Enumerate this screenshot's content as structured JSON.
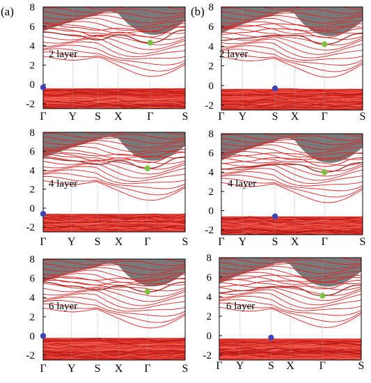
{
  "figure": {
    "panel_labels": [
      "(a)",
      "(b)"
    ]
  },
  "colors": {
    "band": "#e21f1f",
    "band_dark": "#a3302a",
    "shade": "#7a7878",
    "vbm_dot": "#3e43b8",
    "cbm_dot": "#7fc043",
    "kline": "#9a9a9a"
  },
  "chart_data": [
    {
      "type": "line",
      "panel": "(a)",
      "label": "2 layer",
      "ylim": [
        -2.5,
        8
      ],
      "yticks": [
        "-2",
        "0",
        "2",
        "4",
        "6",
        "8"
      ],
      "kpoints": [
        "Γ",
        "Y",
        "S",
        "X",
        "Γ",
        "S"
      ],
      "kpos": [
        0,
        0.208,
        0.385,
        0.529,
        0.754,
        1
      ],
      "vbm": {
        "k": "Γ",
        "energy": -0.3
      },
      "cbm": {
        "k": "Γ",
        "energy": 4.3
      },
      "cbm_curve": [
        [
          0,
          5.4
        ],
        [
          0.208,
          5.1
        ],
        [
          0.385,
          4.6
        ],
        [
          0.529,
          5.1
        ],
        [
          0.754,
          4.3
        ],
        [
          1,
          5.6
        ]
      ],
      "sub_curves": [
        [
          [
            0,
            5.8
          ],
          [
            0.208,
            5.5
          ],
          [
            0.385,
            5.0
          ],
          [
            0.529,
            5.4
          ],
          [
            0.754,
            4.9
          ],
          [
            1,
            6.0
          ]
        ],
        [
          [
            0,
            6.3
          ],
          [
            0.208,
            5.9
          ],
          [
            0.385,
            5.6
          ],
          [
            0.529,
            5.8
          ],
          [
            0.754,
            5.5
          ],
          [
            1,
            6.3
          ]
        ]
      ],
      "vb_top": -0.4,
      "shade_low": 5.2
    },
    {
      "type": "line",
      "panel": "(b)",
      "label": "2 layer",
      "ylim": [
        -2.5,
        8
      ],
      "yticks": [
        "-2",
        "0",
        "2",
        "4",
        "6",
        "8"
      ],
      "kpoints": [
        "Γ",
        "Y",
        "S",
        "X",
        "Γ",
        "S"
      ],
      "kpos": [
        0,
        0.15,
        0.38,
        0.52,
        0.73,
        1
      ],
      "vbm": {
        "k": "S",
        "energy": -0.3
      },
      "cbm": {
        "k": "Γ",
        "energy": 4.2
      },
      "cbm_curve": [
        [
          0,
          4.6
        ],
        [
          0.15,
          4.8
        ],
        [
          0.38,
          5.1
        ],
        [
          0.52,
          5.1
        ],
        [
          0.73,
          4.2
        ],
        [
          1,
          5.3
        ]
      ],
      "sub_curves": [
        [
          [
            0,
            5.2
          ],
          [
            0.15,
            5.4
          ],
          [
            0.38,
            5.8
          ],
          [
            0.52,
            5.7
          ],
          [
            0.73,
            4.9
          ],
          [
            1,
            5.8
          ]
        ],
        [
          [
            0,
            5.8
          ],
          [
            0.15,
            6.0
          ],
          [
            0.38,
            6.3
          ],
          [
            0.52,
            6.2
          ],
          [
            0.73,
            5.6
          ],
          [
            1,
            6.3
          ]
        ]
      ],
      "vb_top": -0.35,
      "shade_low": 5.0
    },
    {
      "type": "line",
      "panel": "(a)",
      "label": "4 layer",
      "ylim": [
        -2.5,
        8
      ],
      "yticks": [
        "-2",
        "0",
        "2",
        "4",
        "6",
        "8"
      ],
      "kpoints": [
        "Γ",
        "Y",
        "S",
        "X",
        "Γ",
        "S"
      ],
      "kpos": [
        0,
        0.2,
        0.383,
        0.532,
        0.735,
        1
      ],
      "vbm": {
        "k": "Γ",
        "energy": -0.6
      },
      "cbm": {
        "k": "Γ",
        "energy": 4.2
      },
      "cbm_curve": [
        [
          0,
          5.3
        ],
        [
          0.2,
          5.0
        ],
        [
          0.383,
          4.6
        ],
        [
          0.532,
          5.0
        ],
        [
          0.735,
          4.2
        ],
        [
          1,
          5.4
        ]
      ],
      "sub_curves": [
        [
          [
            0,
            5.7
          ],
          [
            0.2,
            5.4
          ],
          [
            0.383,
            5.0
          ],
          [
            0.532,
            5.3
          ],
          [
            0.735,
            4.8
          ],
          [
            1,
            5.9
          ]
        ],
        [
          [
            0,
            6.2
          ],
          [
            0.2,
            5.8
          ],
          [
            0.383,
            5.5
          ],
          [
            0.532,
            5.7
          ],
          [
            0.735,
            5.4
          ],
          [
            1,
            6.2
          ]
        ]
      ],
      "vb_top": -0.6,
      "shade_low": 5.0
    },
    {
      "type": "line",
      "panel": "(b)",
      "label": "4 layer",
      "ylim": [
        -2.5,
        8
      ],
      "yticks": [
        "-2",
        "0",
        "2",
        "4",
        "6",
        "8"
      ],
      "kpoints": [
        "Γ",
        "Y",
        "S",
        "X",
        "Γ",
        "S"
      ],
      "kpos": [
        0,
        0.15,
        0.38,
        0.52,
        0.73,
        1
      ],
      "vbm": {
        "k": "S",
        "energy": -0.6
      },
      "cbm": {
        "k": "Γ",
        "energy": 4.0
      },
      "cbm_curve": [
        [
          0,
          4.3
        ],
        [
          0.15,
          4.5
        ],
        [
          0.38,
          4.8
        ],
        [
          0.52,
          4.8
        ],
        [
          0.73,
          4.0
        ],
        [
          1,
          5.0
        ]
      ],
      "sub_curves": [
        [
          [
            0,
            4.9
          ],
          [
            0.15,
            5.1
          ],
          [
            0.38,
            5.5
          ],
          [
            0.52,
            5.4
          ],
          [
            0.73,
            4.6
          ],
          [
            1,
            5.5
          ]
        ],
        [
          [
            0,
            5.5
          ],
          [
            0.15,
            5.7
          ],
          [
            0.38,
            6.0
          ],
          [
            0.52,
            5.9
          ],
          [
            0.73,
            5.3
          ],
          [
            1,
            6.0
          ]
        ]
      ],
      "vb_top": -0.6,
      "shade_low": 4.9
    },
    {
      "type": "line",
      "panel": "(a)",
      "label": "6 layer",
      "ylim": [
        -2.5,
        8
      ],
      "yticks": [
        "-2",
        "0",
        "2",
        "4",
        "6",
        "8"
      ],
      "kpoints": [
        "Γ",
        "Y",
        "S",
        "X",
        "Γ",
        "S"
      ],
      "kpos": [
        0,
        0.2,
        0.383,
        0.532,
        0.735,
        1
      ],
      "vbm": {
        "k": "Γ",
        "energy": 0.0
      },
      "cbm": {
        "k": "Γ",
        "energy": 4.6
      },
      "cbm_curve": [
        [
          0,
          5.6
        ],
        [
          0.2,
          5.2
        ],
        [
          0.383,
          4.8
        ],
        [
          0.532,
          5.2
        ],
        [
          0.735,
          4.6
        ],
        [
          1,
          5.6
        ]
      ],
      "sub_curves": [
        [
          [
            0,
            6.0
          ],
          [
            0.2,
            5.6
          ],
          [
            0.383,
            5.3
          ],
          [
            0.532,
            5.6
          ],
          [
            0.735,
            5.2
          ],
          [
            1,
            6.0
          ]
        ],
        [
          [
            0,
            6.4
          ],
          [
            0.2,
            6.0
          ],
          [
            0.383,
            5.8
          ],
          [
            0.532,
            6.0
          ],
          [
            0.735,
            5.7
          ],
          [
            1,
            6.4
          ]
        ]
      ],
      "vb_top": -0.2,
      "shade_low": 5.3
    },
    {
      "type": "line",
      "panel": "(b)",
      "label": "6 layer",
      "ylim": [
        -2.5,
        8
      ],
      "yticks": [
        "-2",
        "0",
        "2",
        "4",
        "6",
        "8"
      ],
      "kpoints": [
        "Γ",
        "Y",
        "S",
        "X",
        "Γ",
        "S"
      ],
      "kpos": [
        0,
        0.146,
        0.365,
        0.5,
        0.727,
        1
      ],
      "vbm": {
        "k": "S",
        "energy": -0.2
      },
      "cbm": {
        "k": "Γ",
        "energy": 4.1
      },
      "cbm_curve": [
        [
          0,
          4.4
        ],
        [
          0.146,
          4.6
        ],
        [
          0.365,
          5.0
        ],
        [
          0.5,
          5.0
        ],
        [
          0.727,
          4.1
        ],
        [
          1,
          5.2
        ]
      ],
      "sub_curves": [
        [
          [
            0,
            5.0
          ],
          [
            0.146,
            5.2
          ],
          [
            0.365,
            5.6
          ],
          [
            0.5,
            5.6
          ],
          [
            0.727,
            4.8
          ],
          [
            1,
            5.7
          ]
        ],
        [
          [
            0,
            5.6
          ],
          [
            0.146,
            5.8
          ],
          [
            0.365,
            6.2
          ],
          [
            0.5,
            6.1
          ],
          [
            0.727,
            5.5
          ],
          [
            1,
            6.2
          ]
        ]
      ],
      "vb_top": -0.3,
      "shade_low": 5.0
    }
  ]
}
